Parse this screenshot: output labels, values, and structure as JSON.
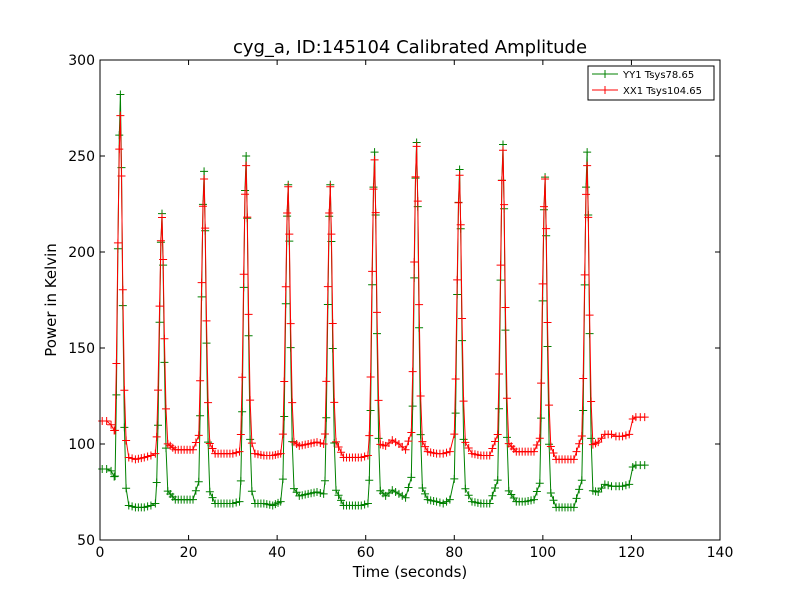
{
  "chart_data": {
    "type": "line",
    "title": "cyg_a, ID:145104 Calibrated Amplitude",
    "xlabel": "Time (seconds)",
    "ylabel": "Power in Kelvin",
    "xlim": [
      0,
      140
    ],
    "ylim": [
      50,
      300
    ],
    "xticks": [
      0,
      20,
      40,
      60,
      80,
      100,
      120,
      140
    ],
    "yticks": [
      50,
      100,
      150,
      200,
      250,
      300
    ],
    "legend_position": "top-right",
    "grid": false,
    "series": [
      {
        "name": "YY1 Tsys78.65",
        "color": "#008000",
        "marker": "+",
        "baseline_segments": [
          [
            0.5,
            87
          ],
          [
            1.5,
            87
          ],
          [
            2.5,
            86
          ],
          [
            3.2,
            83
          ],
          [
            3.6,
            72
          ],
          [
            4.0,
            71
          ],
          [
            5.5,
            70
          ],
          [
            6.5,
            68
          ],
          [
            8,
            67
          ],
          [
            10,
            67
          ],
          [
            11.5,
            68
          ],
          [
            12.5,
            69
          ],
          [
            13.2,
            71
          ],
          [
            15,
            71
          ],
          [
            17,
            71
          ],
          [
            19,
            71
          ],
          [
            21,
            71
          ],
          [
            22.5,
            70
          ],
          [
            24.5,
            70
          ],
          [
            26,
            69
          ],
          [
            28,
            69
          ],
          [
            30,
            69
          ],
          [
            31.5,
            70
          ],
          [
            34,
            70
          ],
          [
            35,
            69
          ],
          [
            37,
            69
          ],
          [
            39,
            68
          ],
          [
            40.8,
            70
          ],
          [
            43.5,
            73
          ],
          [
            45,
            73
          ],
          [
            47,
            74
          ],
          [
            49,
            75
          ],
          [
            50.5,
            74
          ],
          [
            53,
            69
          ],
          [
            55,
            68
          ],
          [
            57,
            68
          ],
          [
            59,
            68
          ],
          [
            60.5,
            69
          ],
          [
            63,
            71
          ],
          [
            64.5,
            73
          ],
          [
            66,
            76
          ],
          [
            67.5,
            74
          ],
          [
            69,
            72
          ],
          [
            70.2,
            71
          ],
          [
            72.8,
            72
          ],
          [
            74,
            71
          ],
          [
            76,
            70
          ],
          [
            77.5,
            69
          ],
          [
            79,
            71
          ],
          [
            80,
            72
          ],
          [
            82.5,
            71
          ],
          [
            84,
            70
          ],
          [
            86,
            69
          ],
          [
            88,
            69
          ],
          [
            90,
            69
          ],
          [
            92,
            71
          ],
          [
            94,
            70
          ],
          [
            96,
            70
          ],
          [
            98,
            71
          ],
          [
            99.3,
            71
          ],
          [
            101.5,
            68
          ],
          [
            103,
            67
          ],
          [
            105,
            67
          ],
          [
            107,
            67
          ],
          [
            108.8,
            68
          ],
          [
            111,
            72
          ],
          [
            112.5,
            75
          ],
          [
            114,
            79
          ],
          [
            115.5,
            78
          ],
          [
            116.5,
            78
          ],
          [
            118,
            78
          ],
          [
            119.5,
            79
          ],
          [
            120.3,
            88
          ],
          [
            121,
            89
          ],
          [
            122,
            89
          ],
          [
            123,
            89
          ]
        ],
        "peaks": [
          {
            "x": 4.6,
            "y": 282
          },
          {
            "x": 14.0,
            "y": 220
          },
          {
            "x": 23.5,
            "y": 242
          },
          {
            "x": 33.0,
            "y": 250
          },
          {
            "x": 42.5,
            "y": 235
          },
          {
            "x": 52.0,
            "y": 235
          },
          {
            "x": 62.0,
            "y": 252
          },
          {
            "x": 71.5,
            "y": 257
          },
          {
            "x": 81.2,
            "y": 243
          },
          {
            "x": 91.0,
            "y": 256
          },
          {
            "x": 100.5,
            "y": 239
          },
          {
            "x": 110.0,
            "y": 252
          }
        ]
      },
      {
        "name": "XX1 Tsys104.65",
        "color": "#ff0000",
        "marker": "+",
        "baseline_segments": [
          [
            0.5,
            112
          ],
          [
            1.5,
            112
          ],
          [
            2.5,
            110
          ],
          [
            3.2,
            107
          ],
          [
            3.6,
            99
          ],
          [
            4.0,
            97
          ],
          [
            5.5,
            96
          ],
          [
            6.5,
            93
          ],
          [
            8,
            92
          ],
          [
            10,
            93
          ],
          [
            11.5,
            94
          ],
          [
            12.5,
            95
          ],
          [
            13.2,
            96
          ],
          [
            15,
            97
          ],
          [
            17,
            97
          ],
          [
            19,
            97
          ],
          [
            21,
            97
          ],
          [
            22.5,
            96
          ],
          [
            24.5,
            96
          ],
          [
            26,
            95
          ],
          [
            28,
            95
          ],
          [
            30,
            95
          ],
          [
            31.5,
            96
          ],
          [
            34,
            96
          ],
          [
            35,
            95
          ],
          [
            37,
            94
          ],
          [
            39,
            94
          ],
          [
            40.8,
            95
          ],
          [
            43.5,
            98
          ],
          [
            45,
            99
          ],
          [
            47,
            100
          ],
          [
            49,
            101
          ],
          [
            50.5,
            100
          ],
          [
            53,
            95
          ],
          [
            55,
            93
          ],
          [
            57,
            93
          ],
          [
            59,
            93
          ],
          [
            60.5,
            94
          ],
          [
            63,
            96
          ],
          [
            64.5,
            99
          ],
          [
            66,
            102
          ],
          [
            67.5,
            100
          ],
          [
            69,
            97
          ],
          [
            70.2,
            96
          ],
          [
            72.8,
            97
          ],
          [
            74,
            96
          ],
          [
            76,
            95
          ],
          [
            77.5,
            95
          ],
          [
            79,
            96
          ],
          [
            80,
            97
          ],
          [
            82.5,
            96
          ],
          [
            84,
            95
          ],
          [
            86,
            94
          ],
          [
            88,
            94
          ],
          [
            90,
            94
          ],
          [
            92,
            97
          ],
          [
            94,
            96
          ],
          [
            96,
            96
          ],
          [
            98,
            96
          ],
          [
            99.3,
            96
          ],
          [
            101.5,
            93
          ],
          [
            103,
            92
          ],
          [
            105,
            92
          ],
          [
            107,
            92
          ],
          [
            108.8,
            93
          ],
          [
            111,
            97
          ],
          [
            112.5,
            101
          ],
          [
            114,
            105
          ],
          [
            115.5,
            105
          ],
          [
            116.5,
            104
          ],
          [
            118,
            104
          ],
          [
            119.5,
            105
          ],
          [
            120.3,
            113
          ],
          [
            121,
            114
          ],
          [
            122,
            114
          ],
          [
            123,
            114
          ]
        ],
        "peaks": [
          {
            "x": 4.6,
            "y": 271
          },
          {
            "x": 14.0,
            "y": 218
          },
          {
            "x": 23.5,
            "y": 238
          },
          {
            "x": 33.0,
            "y": 245
          },
          {
            "x": 42.5,
            "y": 234
          },
          {
            "x": 52.0,
            "y": 234
          },
          {
            "x": 62.0,
            "y": 248
          },
          {
            "x": 71.5,
            "y": 255
          },
          {
            "x": 81.2,
            "y": 240
          },
          {
            "x": 91.0,
            "y": 253
          },
          {
            "x": 100.5,
            "y": 238
          },
          {
            "x": 110.0,
            "y": 245
          }
        ]
      }
    ]
  }
}
